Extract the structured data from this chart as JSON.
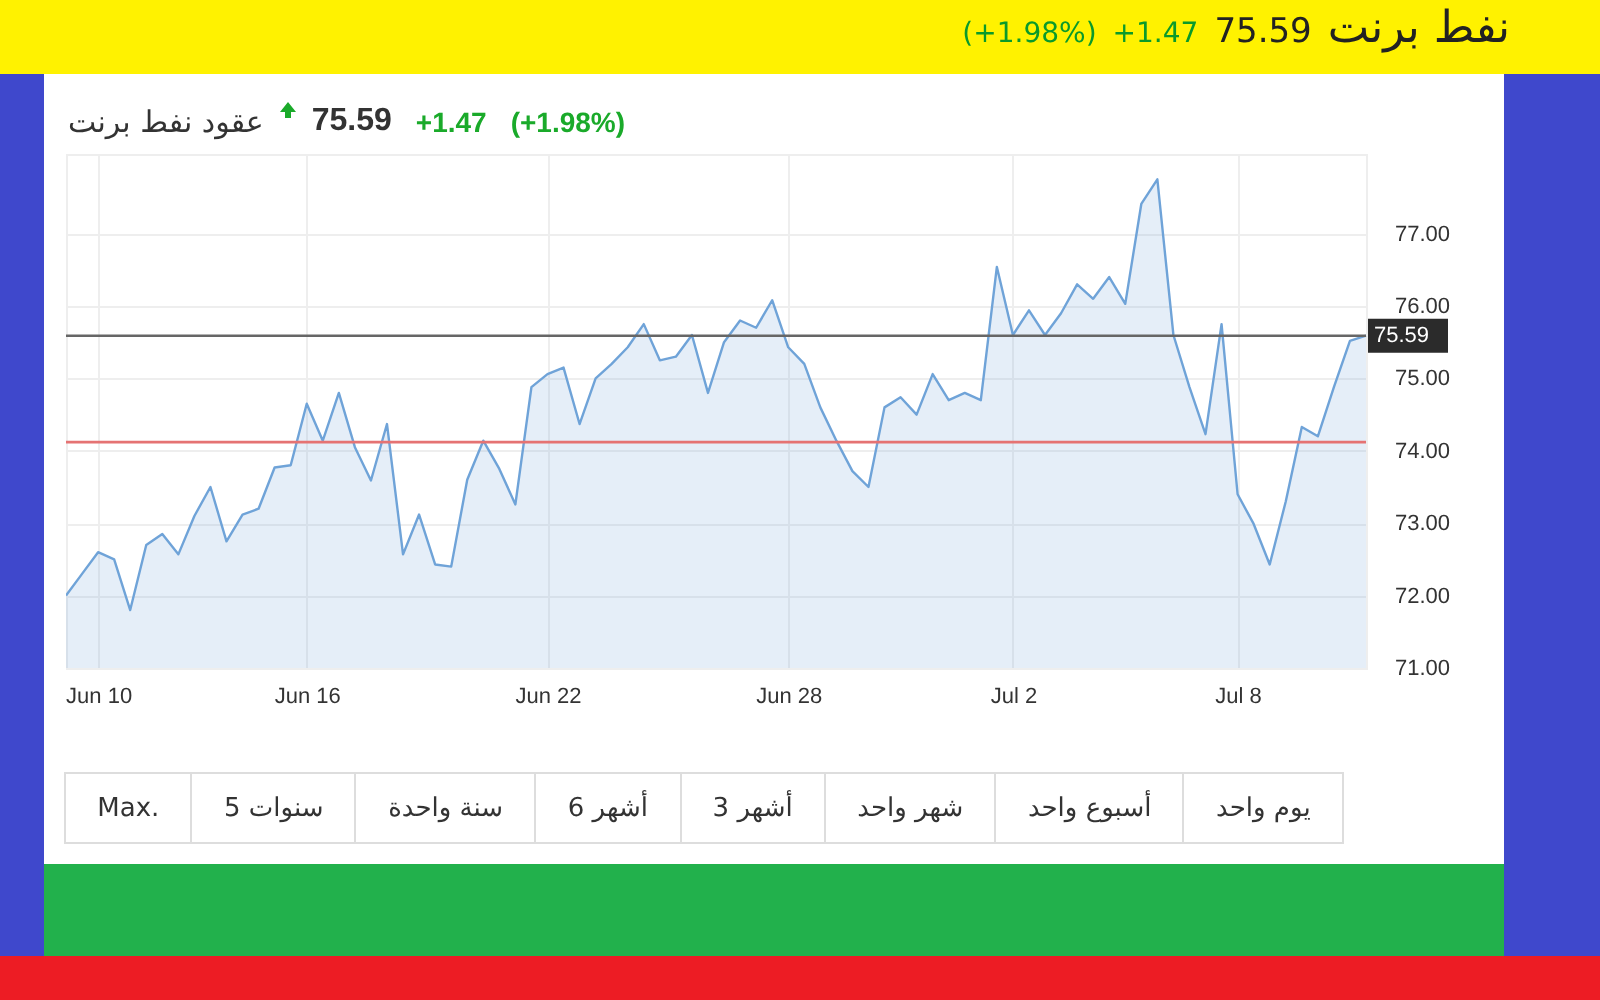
{
  "chart_data": {
    "type": "area",
    "title": "عقود نفط برنت",
    "subtitle": "75.59",
    "annotations": [
      "+1.47",
      "(+1.98%)",
      "نفط برنت",
      "75.59",
      "+1.47",
      "(+1.98%)",
      "Max.",
      "5 سنوات",
      "سنة واحدة",
      "6 أشهر",
      "3 أشهر",
      "شهر واحد",
      "أسبوع واحد",
      "يوم واحد"
    ],
    "categories": [
      null,
      null,
      "Jun 10",
      null,
      null,
      null,
      null,
      null,
      null,
      null,
      null,
      null,
      null,
      null,
      null,
      "Jun 16",
      null,
      null,
      null,
      null,
      null,
      null,
      null,
      null,
      null,
      null,
      null,
      null,
      null,
      null,
      "Jun 22",
      null,
      null,
      null,
      null,
      null,
      null,
      null,
      null,
      null,
      null,
      null,
      null,
      null,
      null,
      "Jun 28",
      null,
      null,
      null,
      null,
      null,
      null,
      null,
      null,
      null,
      null,
      null,
      null,
      null,
      "Jul 2",
      null,
      null,
      null,
      null,
      null,
      null,
      null,
      null,
      null,
      null,
      null,
      null,
      null,
      "Jul 8",
      null,
      null,
      null,
      null,
      null,
      null,
      null,
      null
    ],
    "series": [
      {
        "color": "#6fa3d8",
        "values": [
          72.0,
          72.3,
          72.6,
          72.5,
          71.8,
          72.7,
          72.85,
          72.57,
          73.1,
          73.5,
          72.75,
          73.12,
          73.2,
          73.77,
          73.8,
          74.65,
          74.14,
          74.8,
          74.05,
          73.59,
          74.37,
          72.57,
          73.12,
          72.43,
          72.4,
          73.6,
          74.14,
          73.75,
          73.26,
          74.88,
          75.06,
          75.15,
          74.37,
          75.0,
          75.2,
          75.43,
          75.75,
          75.25,
          75.3,
          75.6,
          74.8,
          75.5,
          75.8,
          75.7,
          76.08,
          75.43,
          75.2,
          74.6,
          74.14,
          73.72,
          73.5,
          74.6,
          74.74,
          74.5,
          75.06,
          74.7,
          74.8,
          74.7,
          76.54,
          75.6,
          75.94,
          75.6,
          75.9,
          76.3,
          76.1,
          76.4,
          76.03,
          77.41,
          77.75,
          75.6,
          74.88,
          74.23,
          75.75,
          73.4,
          72.99,
          72.43,
          73.3,
          74.33,
          74.2,
          74.88,
          75.52,
          75.59
        ]
      }
    ],
    "ylim": [
      71,
      78.1
    ],
    "yticks": [
      {
        "value": 71,
        "label": "71.00"
      },
      {
        "value": 72,
        "label": "72.00"
      },
      {
        "value": 73,
        "label": "73.00"
      },
      {
        "value": 74,
        "label": "74.00"
      },
      {
        "value": 75,
        "label": "75.00"
      },
      {
        "value": 76,
        "label": "76.00"
      },
      {
        "value": 77,
        "label": "77.00"
      }
    ],
    "ref_lines": [
      {
        "axis": "y",
        "value": 75.59,
        "label": "75.59",
        "color": "#666666"
      },
      {
        "axis": "y",
        "value": 74.12,
        "color": "#e57373"
      }
    ],
    "grid": true
  }
}
